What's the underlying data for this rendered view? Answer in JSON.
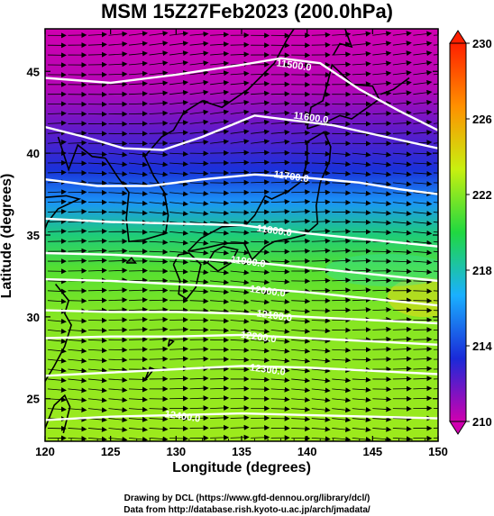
{
  "title": "MSM 15Z27Feb2023 (200.0hPa)",
  "credits": {
    "line1": "Drawing by DCL (https://www.gfd-dennou.org/library/dcl/)",
    "line2": "Data from http://database.rish.kyoto-u.ac.jp/arch/jmadata/"
  },
  "chart_data": {
    "type": "heatmap",
    "xlabel": "Longitude (degrees)",
    "ylabel": "Latitude  (degrees)",
    "xlim": [
      120,
      150
    ],
    "ylim": [
      22.4,
      47.6
    ],
    "x_ticks": [
      120,
      125,
      130,
      135,
      140,
      145,
      150
    ],
    "y_ticks": [
      25,
      30,
      35,
      40,
      45
    ],
    "colorbar": {
      "min": 210,
      "max": 230,
      "ticks": [
        210,
        214,
        218,
        222,
        226,
        230
      ],
      "colors": [
        "#d000b0",
        "#1a2ad8",
        "#1ab0ff",
        "#20d840",
        "#c8f010",
        "#ff9000",
        "#ff2000"
      ]
    },
    "field_bands": [
      {
        "lat": 47.6,
        "value": 210
      },
      {
        "lat": 44.0,
        "value": 210.5
      },
      {
        "lat": 41.5,
        "value": 212
      },
      {
        "lat": 39.0,
        "value": 213.5
      },
      {
        "lat": 37.0,
        "value": 216
      },
      {
        "lat": 35.0,
        "value": 219
      },
      {
        "lat": 33.0,
        "value": 221
      },
      {
        "lat": 30.0,
        "value": 222
      },
      {
        "lat": 22.4,
        "value": 222.5
      }
    ],
    "contours": [
      {
        "label": "11500.0",
        "lon": [
          120,
          125,
          130,
          135,
          138,
          141,
          144,
          147,
          150
        ],
        "lat": [
          44.6,
          44.3,
          44.8,
          45.4,
          45.8,
          45.5,
          43.9,
          42.6,
          41.4
        ]
      },
      {
        "label": "11600.0",
        "lon": [
          120,
          123,
          126,
          129,
          132,
          136,
          139,
          142,
          146,
          150
        ],
        "lat": [
          41.6,
          41.0,
          40.3,
          40.2,
          41.0,
          42.3,
          42.0,
          41.7,
          41.0,
          40.3
        ]
      },
      {
        "label": "11700.0",
        "lon": [
          120,
          124,
          128,
          132,
          136,
          140,
          144,
          147,
          150
        ],
        "lat": [
          38.4,
          38.0,
          38.0,
          38.4,
          38.7,
          38.5,
          38.2,
          37.8,
          37.5
        ]
      },
      {
        "label": "11800.0",
        "lon": [
          120,
          125,
          130,
          135,
          140,
          145,
          150
        ],
        "lat": [
          36.0,
          35.8,
          35.7,
          35.6,
          35.1,
          34.7,
          34.3
        ]
      },
      {
        "label": "11900.0",
        "lon": [
          120,
          125,
          130,
          135,
          140,
          145,
          150
        ],
        "lat": [
          33.9,
          33.8,
          33.6,
          33.4,
          33.0,
          32.6,
          32.2
        ]
      },
      {
        "label": "12000.0",
        "lon": [
          120,
          125,
          130,
          135,
          140,
          145,
          150
        ],
        "lat": [
          32.3,
          32.2,
          32.0,
          31.8,
          31.5,
          31.1,
          30.7
        ]
      },
      {
        "label": "12100.0",
        "lon": [
          120,
          125,
          130,
          135,
          140,
          145,
          150
        ],
        "lat": [
          30.4,
          30.3,
          30.3,
          30.2,
          30.0,
          29.8,
          29.6
        ]
      },
      {
        "label": "12200.0",
        "lon": [
          120,
          125,
          130,
          135,
          140,
          145,
          150
        ],
        "lat": [
          28.7,
          28.8,
          28.8,
          28.9,
          28.7,
          28.5,
          28.3
        ]
      },
      {
        "label": "12300.0",
        "lon": [
          120,
          125,
          130,
          135,
          140,
          145,
          150
        ],
        "lat": [
          26.4,
          26.6,
          26.8,
          27.0,
          26.9,
          26.7,
          26.5
        ]
      },
      {
        "label": "12400.0",
        "lon": [
          120,
          125,
          130,
          135,
          140,
          145,
          150
        ],
        "lat": [
          23.7,
          23.9,
          24.0,
          24.1,
          24.0,
          23.9,
          23.8
        ]
      }
    ],
    "contour_labels": [
      {
        "text": "11500.0",
        "lon": 139.0,
        "lat": 45.4
      },
      {
        "text": "11600.0",
        "lon": 140.3,
        "lat": 42.2
      },
      {
        "text": "11700.0",
        "lon": 138.8,
        "lat": 38.6
      },
      {
        "text": "11800.0",
        "lon": 137.5,
        "lat": 35.3
      },
      {
        "text": "11900.0",
        "lon": 135.5,
        "lat": 33.4
      },
      {
        "text": "12000.0",
        "lon": 137.0,
        "lat": 31.6
      },
      {
        "text": "12100.0",
        "lon": 137.5,
        "lat": 30.1
      },
      {
        "text": "12200.0",
        "lon": 136.3,
        "lat": 28.8
      },
      {
        "text": "12300.0",
        "lon": 137.0,
        "lat": 26.8
      },
      {
        "text": "12400.0",
        "lon": 130.5,
        "lat": 23.95
      }
    ],
    "wind_direction": "eastward"
  }
}
